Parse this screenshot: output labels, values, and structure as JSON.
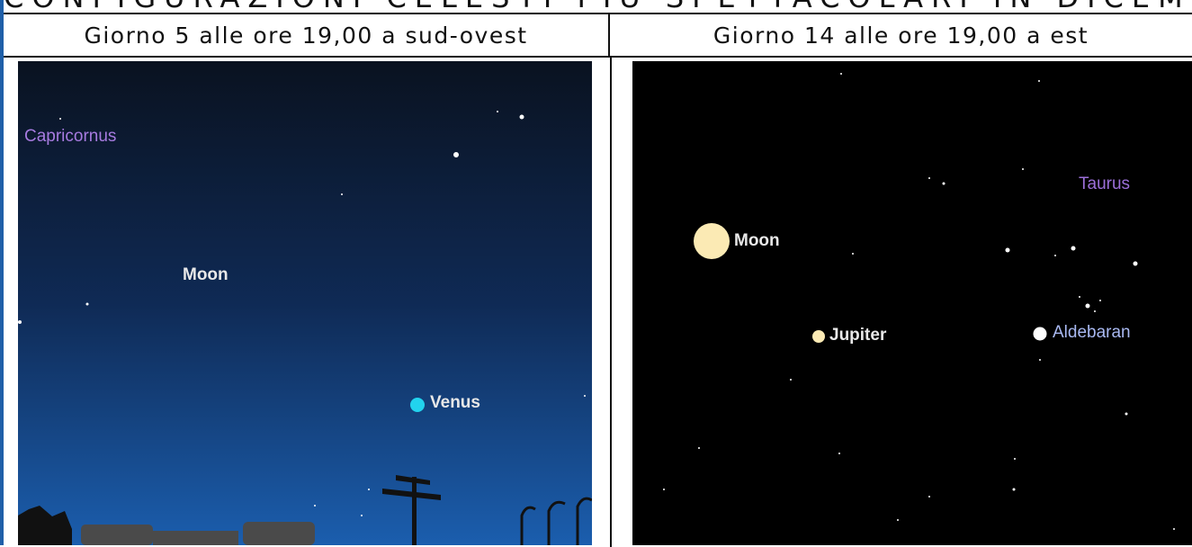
{
  "title": "CONFIGURAZIONI CELESTI PIÙ SPETTACOLARI IN DICEMBRE",
  "table": {
    "headers": [
      "Giorno 5 alle ore 19,00 a sud-ovest",
      "Giorno 14 alle ore 19,00 a est"
    ]
  },
  "images": [
    {
      "labels": [
        "Capricornus",
        "Moon",
        "Venus"
      ]
    },
    {
      "labels": [
        "Moon",
        "Jupiter",
        "Taurus",
        "Aldebaran"
      ]
    }
  ]
}
